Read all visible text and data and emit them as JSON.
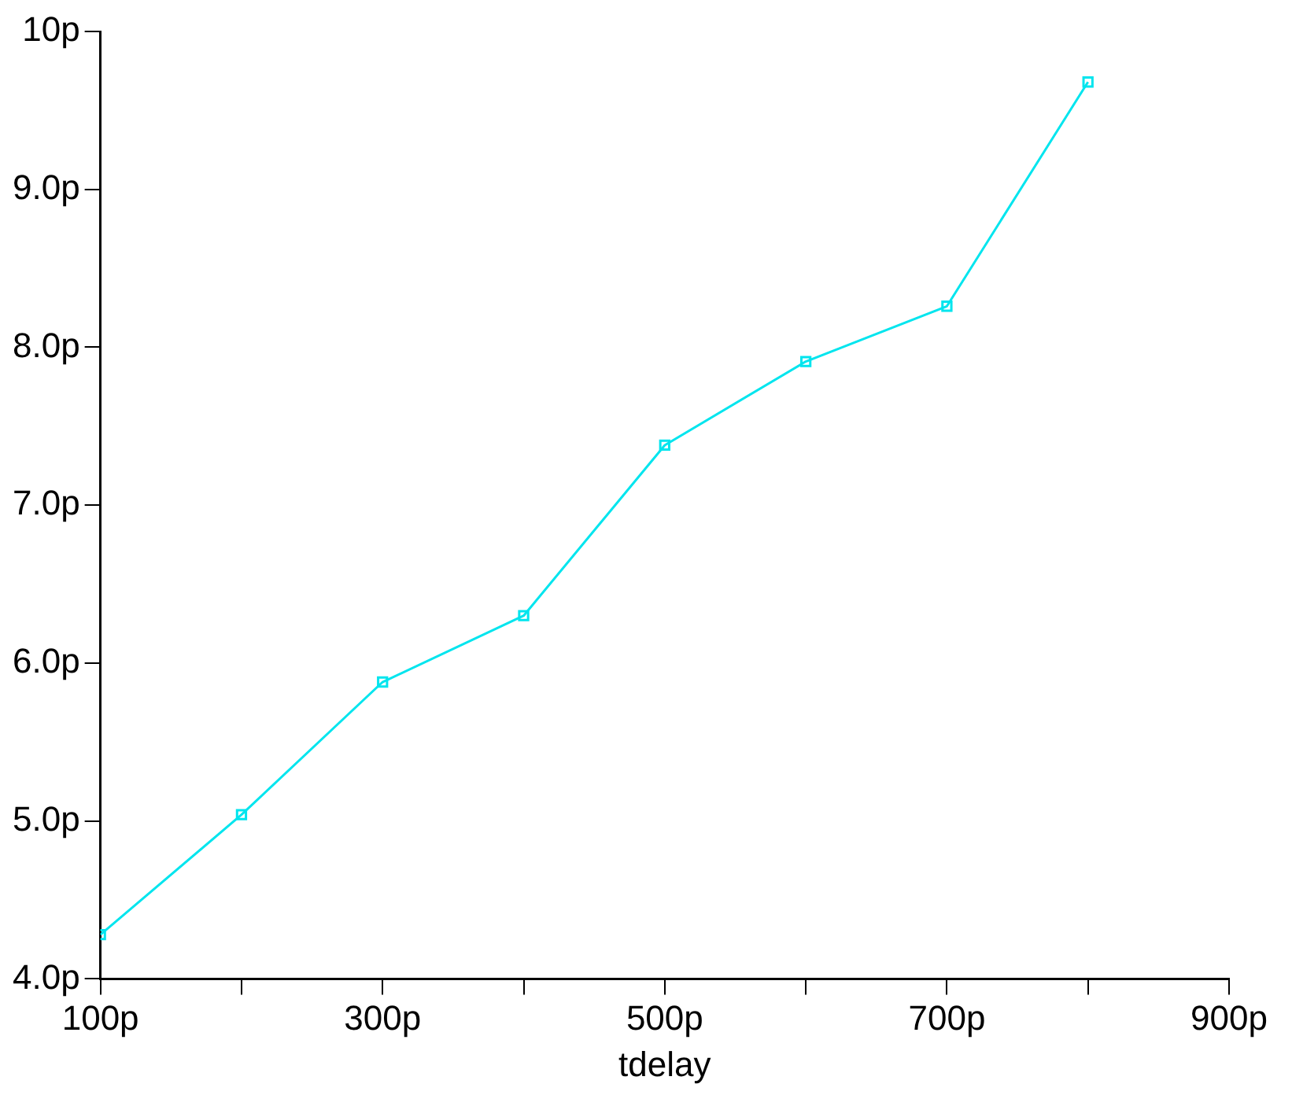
{
  "chart_data": {
    "type": "line",
    "xlabel": "tdelay",
    "x": [
      100,
      200,
      300,
      400,
      500,
      600,
      700,
      800
    ],
    "series": [
      {
        "color": "#00e5ee",
        "values": [
          4.28,
          5.04,
          5.88,
          6.3,
          7.38,
          7.91,
          8.26,
          9.68
        ]
      }
    ],
    "xlim": [
      100,
      900
    ],
    "xticks": [
      {
        "value": 100,
        "label": "100p"
      },
      {
        "value": 200,
        "label": null
      },
      {
        "value": 300,
        "label": "300p"
      },
      {
        "value": 400,
        "label": null
      },
      {
        "value": 500,
        "label": "500p"
      },
      {
        "value": 600,
        "label": null
      },
      {
        "value": 700,
        "label": "700p"
      },
      {
        "value": 800,
        "label": null
      },
      {
        "value": 900,
        "label": "900p"
      }
    ],
    "ylim": [
      4,
      10
    ],
    "yticks": [
      {
        "value": 4,
        "label": "4.0p"
      },
      {
        "value": 5,
        "label": "5.0p"
      },
      {
        "value": 6,
        "label": "6.0p"
      },
      {
        "value": 7,
        "label": "7.0p"
      },
      {
        "value": 8,
        "label": "8.0p"
      },
      {
        "value": 9,
        "label": "9.0p"
      },
      {
        "value": 10,
        "label": "10p"
      }
    ],
    "grid": false,
    "legend": false,
    "marker": "square",
    "line_style": "solid"
  }
}
